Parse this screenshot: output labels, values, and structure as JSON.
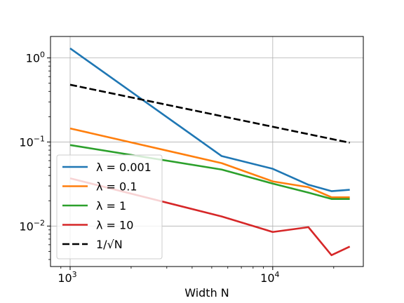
{
  "chart_data": {
    "type": "line",
    "xlabel": "Width N",
    "ylabel": "",
    "xscale": "log",
    "yscale": "log",
    "xlim": [
      800,
      28000
    ],
    "ylim": [
      0.0033,
      1.8
    ],
    "grid": true,
    "legend_position": "lower-left",
    "x_ticks": [
      {
        "value": 1000,
        "base": "10",
        "exp": "3"
      },
      {
        "value": 10000,
        "base": "10",
        "exp": "4"
      }
    ],
    "y_ticks": [
      {
        "value": 0.01,
        "base": "10",
        "exp": "−2"
      },
      {
        "value": 0.1,
        "base": "10",
        "exp": "−1"
      },
      {
        "value": 1,
        "base": "10",
        "exp": "0"
      }
    ],
    "series": [
      {
        "name": "λ = 0.001",
        "color": "#1f77b4",
        "dash": "solid",
        "x": [
          1000,
          5600,
          10000,
          15000,
          19500,
          24000
        ],
        "y": [
          1.3,
          0.068,
          0.048,
          0.031,
          0.026,
          0.027
        ]
      },
      {
        "name": "λ = 0.1",
        "color": "#ff7f0e",
        "dash": "solid",
        "x": [
          1000,
          5600,
          10000,
          15000,
          19500,
          24000
        ],
        "y": [
          0.145,
          0.056,
          0.034,
          0.029,
          0.022,
          0.022
        ]
      },
      {
        "name": "λ = 1",
        "color": "#2ca02c",
        "dash": "solid",
        "x": [
          1000,
          5600,
          10000,
          15000,
          19500,
          24000
        ],
        "y": [
          0.092,
          0.047,
          0.032,
          0.025,
          0.021,
          0.021
        ]
      },
      {
        "name": "λ = 10",
        "color": "#d62728",
        "dash": "solid",
        "x": [
          1000,
          5600,
          10000,
          15000,
          19500,
          24000
        ],
        "y": [
          0.037,
          0.013,
          0.0085,
          0.0097,
          0.0045,
          0.0057
        ]
      },
      {
        "name": "1/√N",
        "color": "#000000",
        "dash": "dashed",
        "x": [
          1000,
          24000
        ],
        "y": [
          0.48,
          0.098
        ]
      }
    ]
  }
}
